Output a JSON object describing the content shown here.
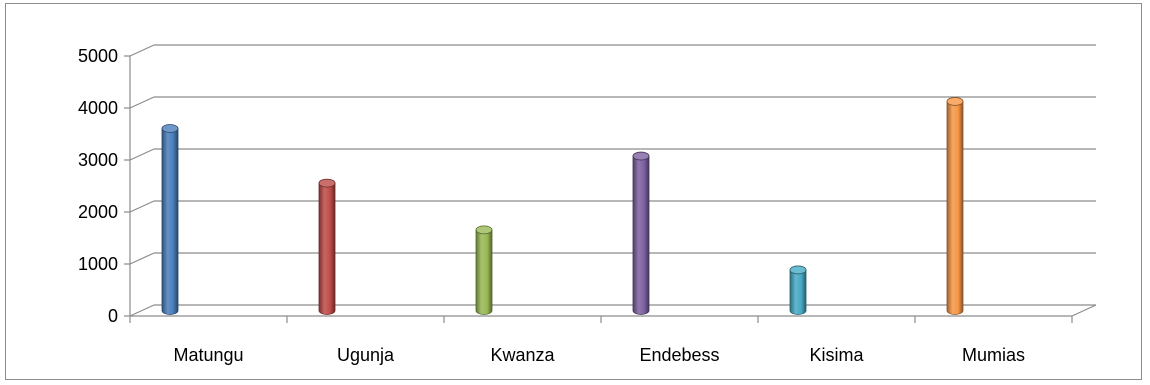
{
  "chart_data": {
    "type": "bar",
    "style": "3d-cylinder",
    "categories": [
      "Matungu",
      "Ugunja",
      "Kwanza",
      "Endebess",
      "Kisima",
      "Mumias"
    ],
    "values": [
      3500,
      2450,
      1550,
      2970,
      780,
      4020
    ],
    "colors": [
      "#4a7ebb",
      "#be4b48",
      "#98b954",
      "#7d60a0",
      "#46aac5",
      "#f79646"
    ],
    "ylim": [
      0,
      5000
    ],
    "yticks": [
      "0",
      "1000",
      "2000",
      "3000",
      "4000",
      "5000"
    ],
    "grid": true,
    "legend": "none"
  }
}
